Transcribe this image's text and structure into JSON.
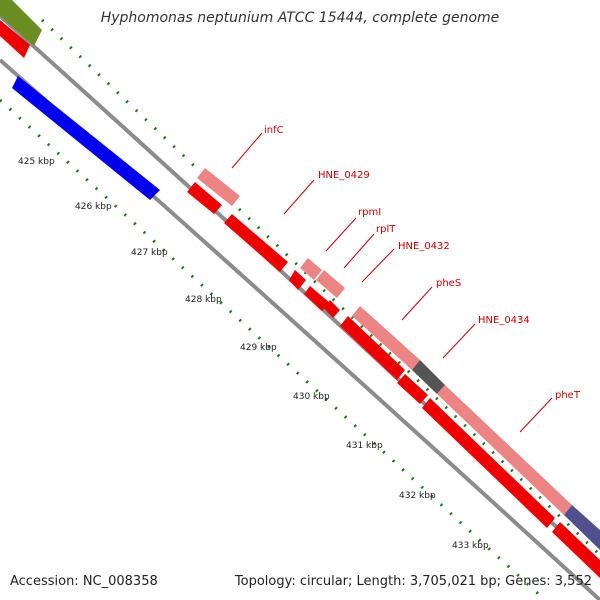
{
  "title": "Hyphomonas neptunium ATCC 15444, complete genome",
  "accession": "Accession: NC_008358",
  "summary": "Topology: circular; Length: 3,705,021 bp; Genes: 3,552",
  "colors": {
    "backbone": "#8c8c8c",
    "ticks": "#1e7a1e",
    "forward_cds": "#ec8484",
    "reverse_cds": "#ee0000",
    "rna": "#0000ee",
    "other": "#6b8e23",
    "pseudo": "#555555",
    "purple": "#50508f",
    "label": "#cc0000"
  },
  "tick_labels": [
    "425 kbp",
    "426 kbp",
    "427 kbp",
    "428 kbp",
    "429 kbp",
    "430 kbp",
    "431 kbp",
    "432 kbp",
    "433 kbp"
  ],
  "gene_labels": [
    "infC",
    "HNE_0429",
    "rpmI",
    "rplT",
    "HNE_0432",
    "pheS",
    "HNE_0434",
    "pheT"
  ]
}
